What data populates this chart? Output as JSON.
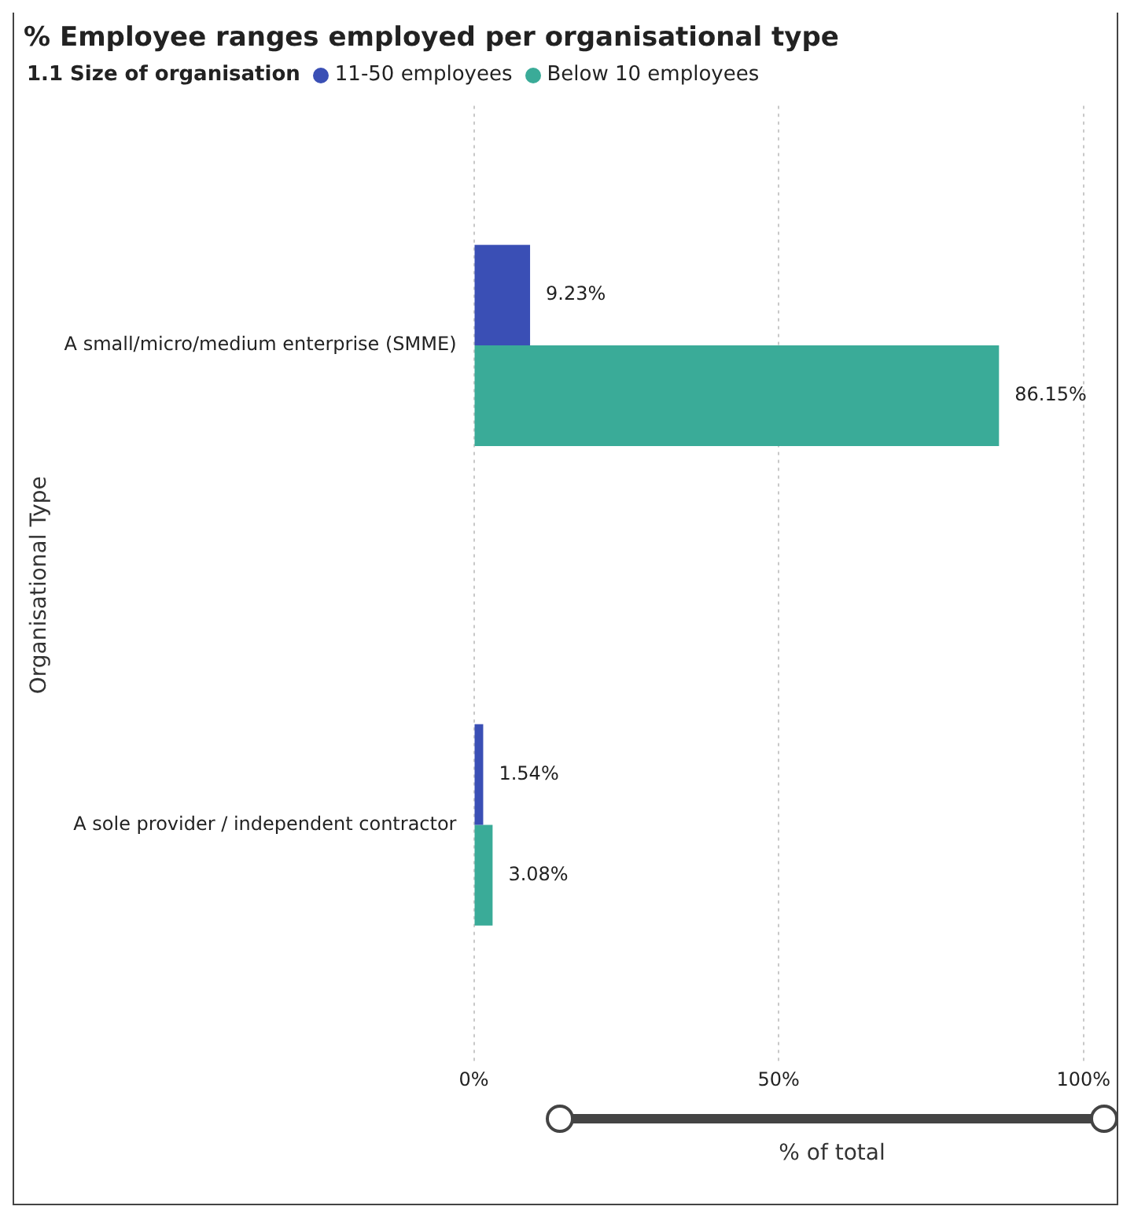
{
  "chart_data": {
    "type": "bar",
    "orientation": "horizontal",
    "title": "% Employee ranges employed per organisational type",
    "legend_title": "1.1 Size of organisation",
    "legend": "top left",
    "xlabel": "% of total",
    "ylabel": "Organisational Type",
    "categories": [
      "A small/micro/medium enterprise (SMME)",
      "A sole provider / independent contractor"
    ],
    "series": [
      {
        "name": "11-50 employees",
        "color": "#3a4fb5",
        "values": [
          9.23,
          1.54
        ],
        "value_labels": [
          "9.23%",
          "1.54%"
        ]
      },
      {
        "name": "Below 10 employees",
        "color": "#3aab98",
        "values": [
          86.15,
          3.08
        ],
        "value_labels": [
          "86.15%",
          "3.08%"
        ]
      }
    ],
    "xlim": [
      0,
      100
    ],
    "xticks": [
      {
        "value": 0,
        "label": "0%"
      },
      {
        "value": 50,
        "label": "50%"
      },
      {
        "value": 100,
        "label": "100%"
      }
    ],
    "grid": "x"
  }
}
